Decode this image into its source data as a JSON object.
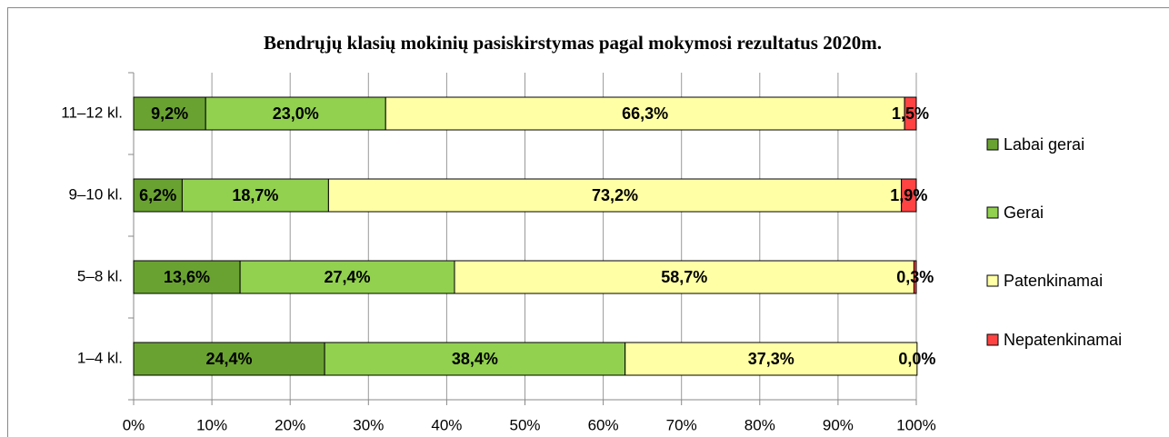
{
  "chart_data": {
    "type": "stacked-bar-horizontal",
    "title": "Bendrųjų klasių mokinių pasiskirstymas pagal mokymosi rezultatus 2020m.",
    "categories": [
      "11–12 kl.",
      "9–10 kl.",
      "5–8 kl.",
      "1–4 kl."
    ],
    "series": [
      {
        "name": "Labai gerai",
        "color": "#6aa232",
        "values": [
          9.2,
          6.2,
          13.6,
          24.4
        ],
        "value_labels": [
          "9,2%",
          "6,2%",
          "13,6%",
          "24,4%"
        ]
      },
      {
        "name": "Gerai",
        "color": "#92d050",
        "values": [
          23.0,
          18.7,
          27.4,
          38.4
        ],
        "value_labels": [
          "23,0%",
          "18,7%",
          "27,4%",
          "38,4%"
        ]
      },
      {
        "name": "Patenkinamai",
        "color": "#ffffa6",
        "values": [
          66.3,
          73.2,
          58.7,
          37.3
        ],
        "value_labels": [
          "66,3%",
          "73,2%",
          "58,7%",
          "37,3%"
        ]
      },
      {
        "name": "Nepatenkinamai",
        "color": "#ff4343",
        "values": [
          1.5,
          1.9,
          0.3,
          0.0
        ],
        "value_labels": [
          "1,5%",
          "1,9%",
          "0,3%",
          "0,0%"
        ]
      }
    ],
    "xlim": [
      0,
      100
    ],
    "xticks": [
      {
        "value": 0,
        "label": "0%"
      },
      {
        "value": 10,
        "label": "10%"
      },
      {
        "value": 20,
        "label": "20%"
      },
      {
        "value": 30,
        "label": "30%"
      },
      {
        "value": 40,
        "label": "40%"
      },
      {
        "value": 50,
        "label": "50%"
      },
      {
        "value": 60,
        "label": "60%"
      },
      {
        "value": 70,
        "label": "70%"
      },
      {
        "value": 80,
        "label": "80%"
      },
      {
        "value": 90,
        "label": "90%"
      },
      {
        "value": 100,
        "label": "100%"
      }
    ],
    "grid": true,
    "legend": "right"
  }
}
